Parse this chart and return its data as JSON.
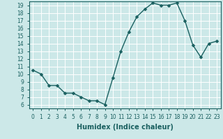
{
  "xlabel": "Humidex (Indice chaleur)",
  "x": [
    0,
    1,
    2,
    3,
    4,
    5,
    6,
    7,
    8,
    9,
    10,
    11,
    12,
    13,
    14,
    15,
    16,
    17,
    18,
    19,
    20,
    21,
    22,
    23
  ],
  "y": [
    10.5,
    10,
    8.5,
    8.5,
    7.5,
    7.5,
    7,
    6.5,
    6.5,
    6,
    9.5,
    13,
    15.5,
    17.5,
    18.5,
    19.3,
    19,
    19,
    19.3,
    17,
    13.8,
    12.2,
    14,
    14.3
  ],
  "line_color": "#1a6060",
  "marker_color": "#1a6060",
  "bg_color": "#cce8e8",
  "grid_color": "#ffffff",
  "ylim": [
    5.5,
    19.5
  ],
  "xlim": [
    -0.5,
    23.5
  ],
  "yticks": [
    6,
    7,
    8,
    9,
    10,
    11,
    12,
    13,
    14,
    15,
    16,
    17,
    18,
    19
  ],
  "xticks": [
    0,
    1,
    2,
    3,
    4,
    5,
    6,
    7,
    8,
    9,
    10,
    11,
    12,
    13,
    14,
    15,
    16,
    17,
    18,
    19,
    20,
    21,
    22,
    23
  ],
  "xlabel_fontsize": 7,
  "tick_fontsize": 5.5,
  "line_width": 1.0,
  "marker_size": 2.5
}
